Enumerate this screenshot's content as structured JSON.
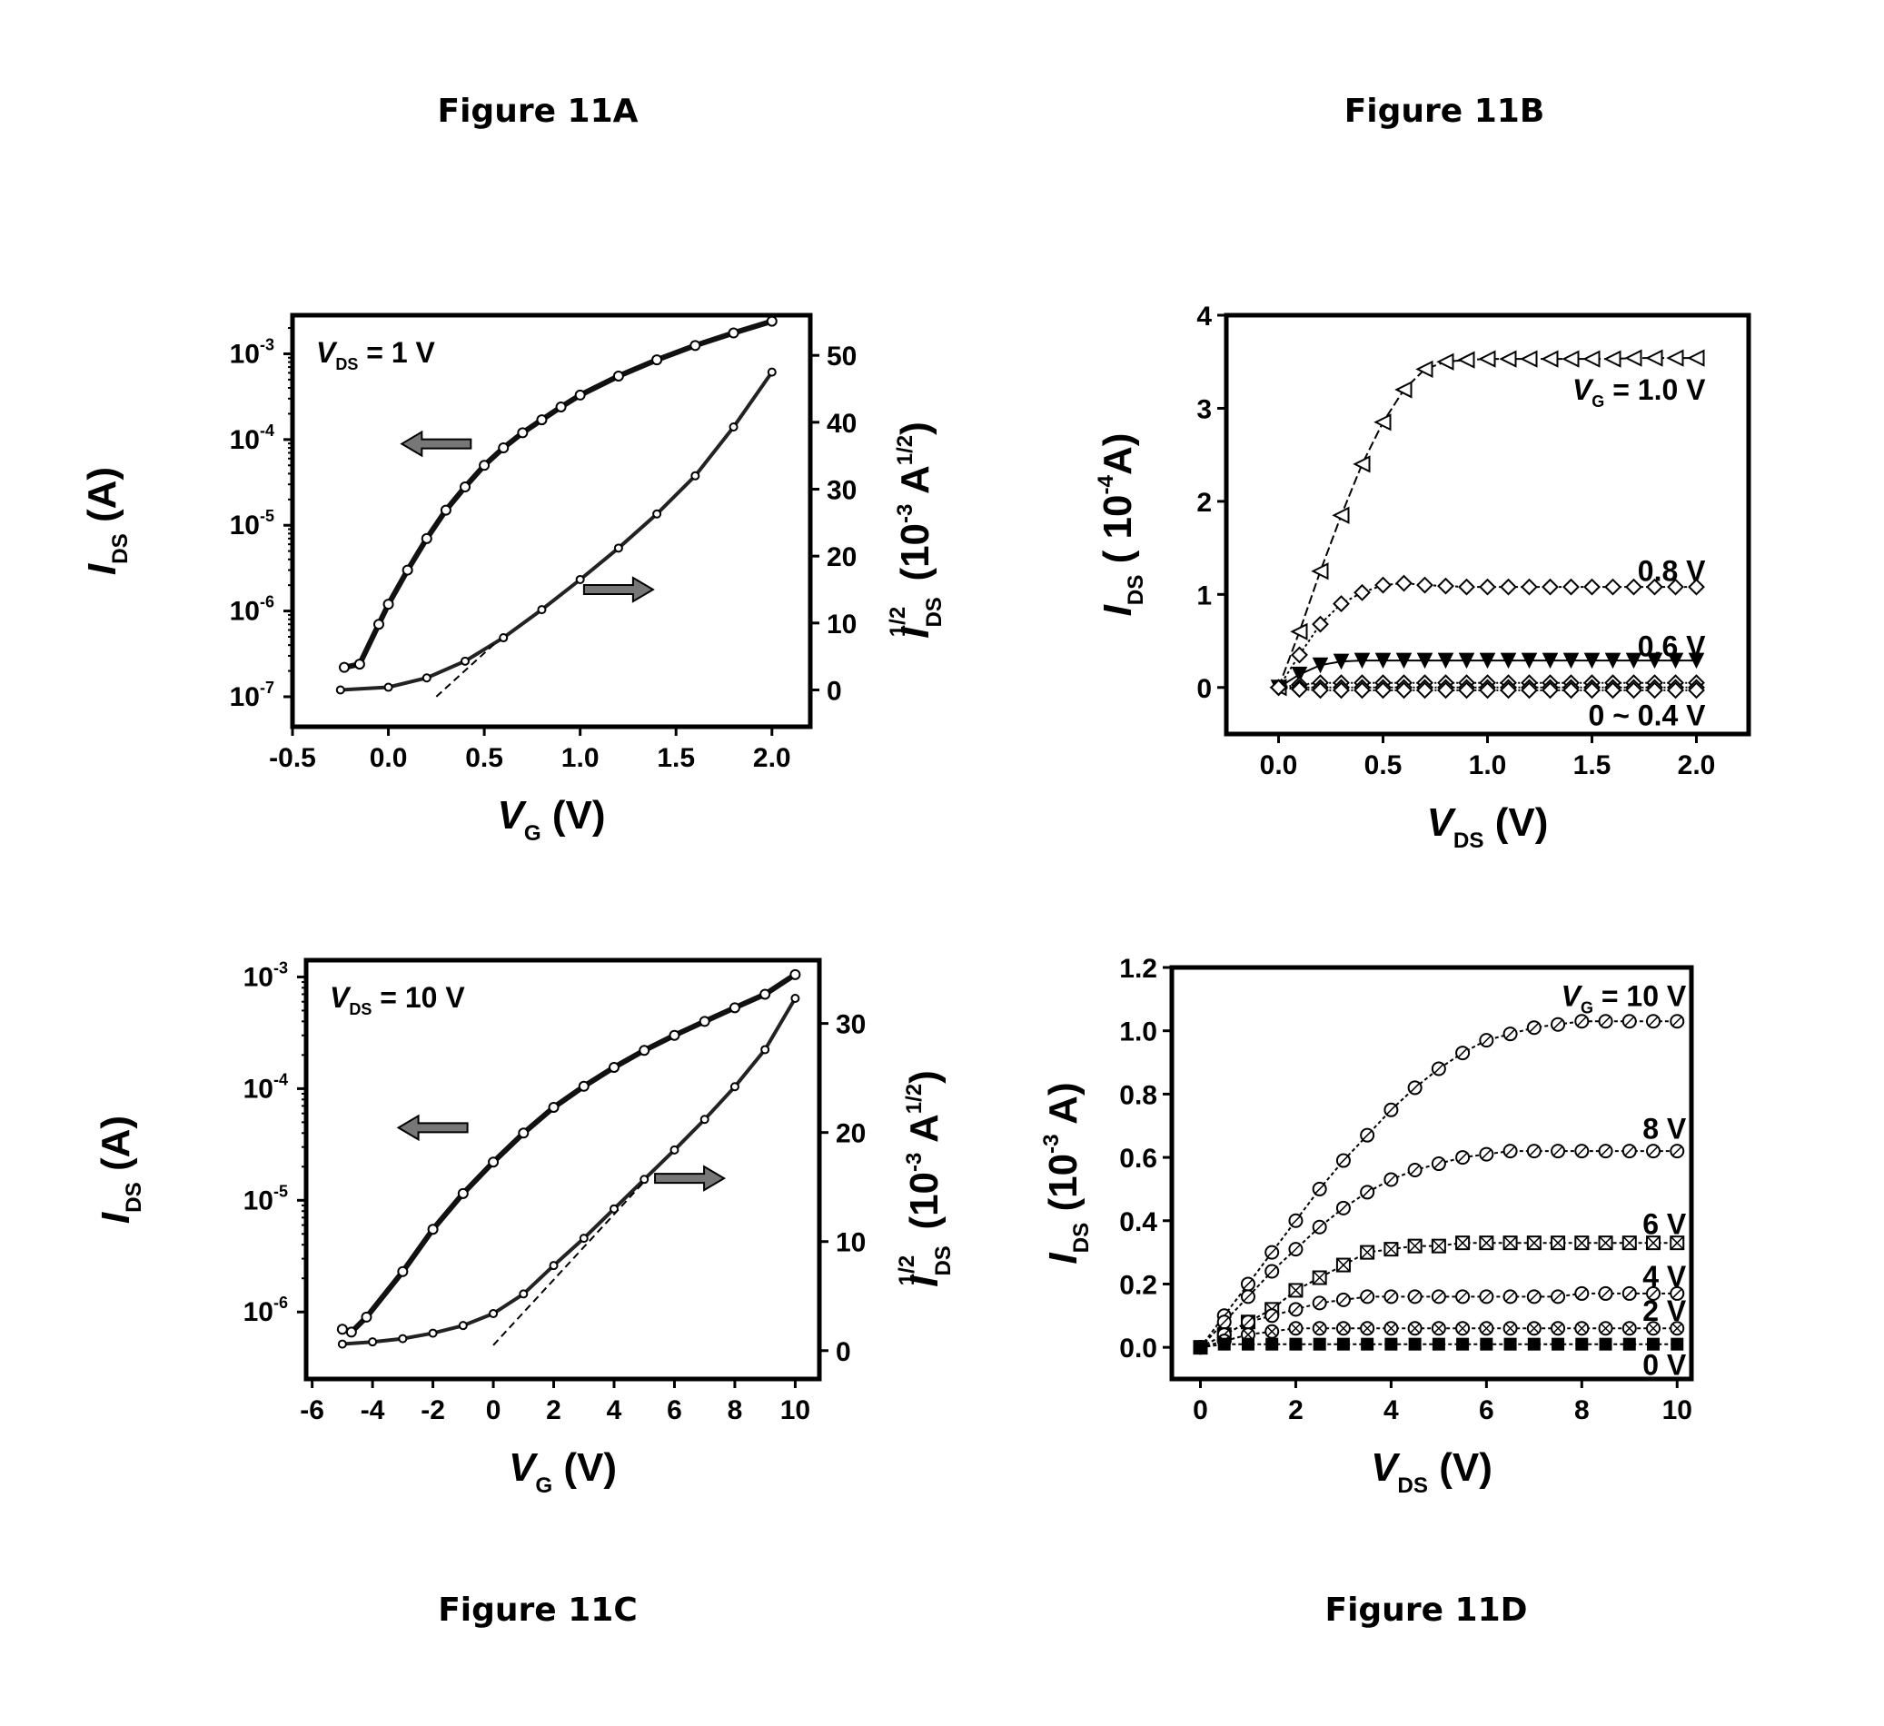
{
  "figures": {
    "a": {
      "title": "Figure 11A"
    },
    "b": {
      "title": "Figure 11B"
    },
    "c": {
      "title": "Figure 11C"
    },
    "d": {
      "title": "Figure 11D"
    }
  },
  "chart_data": [
    {
      "id": "a",
      "type": "line",
      "title": "Figure 11A",
      "annotation": {
        "var": "V",
        "sub": "DS",
        "text": " = 1 V"
      },
      "xlabel": {
        "var": "V",
        "sub": "G",
        "text": " (V)"
      },
      "ylabel": {
        "var": "I",
        "sub": "DS",
        "text": " (A)"
      },
      "y2label": {
        "var": "I",
        "sub": "DS",
        "sup": "1/2",
        "text_a": " (10",
        "text_sup": "-3",
        "text_b": " A",
        "text_sup2": "1/2",
        "text_c": ")"
      },
      "xlim": [
        -0.5,
        2.2
      ],
      "xticks": [
        -0.5,
        0.0,
        0.5,
        1.0,
        1.5,
        2.0
      ],
      "xtick_labels": [
        "-0.5",
        "0.0",
        "0.5",
        "1.0",
        "1.5",
        "2.0"
      ],
      "ylim_log": [
        -7.35,
        -2.55
      ],
      "yticks_log": [
        -7,
        -6,
        -5,
        -4,
        -3
      ],
      "ytick_labels_log": [
        {
          "base": "10",
          "exp": "-7"
        },
        {
          "base": "10",
          "exp": "-6"
        },
        {
          "base": "10",
          "exp": "-5"
        },
        {
          "base": "10",
          "exp": "-4"
        },
        {
          "base": "10",
          "exp": "-3"
        }
      ],
      "y2lim": [
        -5.5,
        56
      ],
      "y2ticks": [
        0,
        10,
        20,
        30,
        40,
        50
      ],
      "y2tick_labels": [
        "0",
        "10",
        "20",
        "30",
        "40",
        "50"
      ],
      "log_series": {
        "axis": "left",
        "x": [
          -0.23,
          -0.15,
          -0.05,
          0.0,
          0.1,
          0.2,
          0.3,
          0.4,
          0.5,
          0.6,
          0.7,
          0.8,
          0.9,
          1.0,
          1.2,
          1.4,
          1.6,
          1.8,
          2.0
        ],
        "y": [
          2.2e-07,
          2.4e-07,
          7e-07,
          1.2e-06,
          3e-06,
          7e-06,
          1.5e-05,
          2.8e-05,
          5e-05,
          8e-05,
          0.00012,
          0.00017,
          0.00024,
          0.00033,
          0.00055,
          0.00085,
          0.00125,
          0.00175,
          0.0024
        ]
      },
      "sqrt_series": {
        "axis": "right",
        "x": [
          -0.25,
          0.0,
          0.2,
          0.4,
          0.6,
          0.8,
          1.0,
          1.2,
          1.4,
          1.6,
          1.8,
          2.0
        ],
        "y": [
          0.0,
          0.4,
          1.8,
          4.3,
          7.8,
          12.0,
          16.5,
          21.2,
          26.3,
          32.0,
          39.3,
          47.5
        ]
      },
      "fit_line": {
        "axis": "right",
        "x": [
          0.25,
          0.55
        ],
        "y": [
          -1.0,
          6.8
        ]
      },
      "arrows": [
        {
          "dir": "left",
          "x": 0.25,
          "ylog": -4.05
        },
        {
          "dir": "right",
          "x": 1.2,
          "y2": 15
        }
      ]
    },
    {
      "id": "b",
      "type": "line",
      "title": "Figure 11B",
      "xlabel": {
        "var": "V",
        "sub": "DS",
        "text": " (V)"
      },
      "ylabel": {
        "var": "I",
        "sub": "DS",
        "text_a": " ( 10",
        "text_sup": "-4",
        "text_b": "A)"
      },
      "xlim": [
        -0.25,
        2.25
      ],
      "xticks": [
        0.0,
        0.5,
        1.0,
        1.5,
        2.0
      ],
      "xtick_labels": [
        "0.0",
        "0.5",
        "1.0",
        "1.5",
        "2.0"
      ],
      "ylim": [
        -0.5,
        4.0
      ],
      "yticks": [
        0,
        1,
        2,
        3,
        4
      ],
      "ytick_labels": [
        "0",
        "1",
        "2",
        "3",
        "4"
      ],
      "series": [
        {
          "label": "V_G = 1.0 V",
          "marker": "tri-left",
          "dash": "10,4",
          "x": [
            0,
            0.1,
            0.2,
            0.3,
            0.4,
            0.5,
            0.6,
            0.7,
            0.8,
            0.9,
            1.0,
            1.1,
            1.2,
            1.3,
            1.4,
            1.5,
            1.6,
            1.7,
            1.8,
            1.9,
            2.0
          ],
          "y": [
            0,
            0.6,
            1.25,
            1.85,
            2.4,
            2.85,
            3.2,
            3.42,
            3.5,
            3.52,
            3.53,
            3.53,
            3.53,
            3.53,
            3.53,
            3.53,
            3.53,
            3.54,
            3.54,
            3.54,
            3.54
          ]
        },
        {
          "label": "0.8 V",
          "marker": "diamond",
          "dash": "3,3",
          "x": [
            0,
            0.1,
            0.2,
            0.3,
            0.4,
            0.5,
            0.6,
            0.7,
            0.8,
            0.9,
            1.0,
            1.1,
            1.2,
            1.3,
            1.4,
            1.5,
            1.6,
            1.7,
            1.8,
            1.9,
            2.0
          ],
          "y": [
            0,
            0.35,
            0.68,
            0.9,
            1.02,
            1.1,
            1.12,
            1.1,
            1.09,
            1.08,
            1.08,
            1.08,
            1.08,
            1.08,
            1.08,
            1.08,
            1.08,
            1.08,
            1.08,
            1.08,
            1.08
          ]
        },
        {
          "label": "0.6 V",
          "marker": "tri-down",
          "dash": "",
          "x": [
            0,
            0.1,
            0.2,
            0.3,
            0.4,
            0.5,
            0.6,
            0.7,
            0.8,
            0.9,
            1.0,
            1.1,
            1.2,
            1.3,
            1.4,
            1.5,
            1.6,
            1.7,
            1.8,
            1.9,
            2.0
          ],
          "y": [
            0,
            0.14,
            0.24,
            0.28,
            0.29,
            0.29,
            0.29,
            0.29,
            0.29,
            0.29,
            0.29,
            0.29,
            0.29,
            0.29,
            0.29,
            0.29,
            0.29,
            0.29,
            0.29,
            0.29,
            0.29
          ]
        },
        {
          "label": "0 ~ 0.4 V",
          "marker": "diamond",
          "dash": "2,2",
          "x": [
            0,
            0.1,
            0.2,
            0.3,
            0.4,
            0.5,
            0.6,
            0.7,
            0.8,
            0.9,
            1.0,
            1.1,
            1.2,
            1.3,
            1.4,
            1.5,
            1.6,
            1.7,
            1.8,
            1.9,
            2.0
          ],
          "y": [
            0,
            0.03,
            0.05,
            0.05,
            0.05,
            0.05,
            0.05,
            0.05,
            0.05,
            0.05,
            0.05,
            0.05,
            0.05,
            0.05,
            0.05,
            0.05,
            0.05,
            0.05,
            0.05,
            0.05,
            0.05
          ]
        },
        {
          "label": "",
          "marker": "diamond",
          "dash": "2,2",
          "x": [
            0,
            0.1,
            0.2,
            0.3,
            0.4,
            0.5,
            0.6,
            0.7,
            0.8,
            0.9,
            1.0,
            1.1,
            1.2,
            1.3,
            1.4,
            1.5,
            1.6,
            1.7,
            1.8,
            1.9,
            2.0
          ],
          "y": [
            0,
            0.0,
            0.0,
            0.0,
            0.0,
            0.0,
            0.0,
            0.0,
            0.0,
            0.0,
            0.0,
            0.0,
            0.0,
            0.0,
            0.0,
            0.0,
            0.0,
            0.0,
            0.0,
            0.0,
            0.0
          ]
        },
        {
          "label": "",
          "marker": "diamond",
          "dash": "2,2",
          "x": [
            0,
            0.1,
            0.2,
            0.3,
            0.4,
            0.5,
            0.6,
            0.7,
            0.8,
            0.9,
            1.0,
            1.1,
            1.2,
            1.3,
            1.4,
            1.5,
            1.6,
            1.7,
            1.8,
            1.9,
            2.0
          ],
          "y": [
            0,
            -0.02,
            -0.03,
            -0.03,
            -0.03,
            -0.03,
            -0.03,
            -0.03,
            -0.03,
            -0.03,
            -0.03,
            -0.03,
            -0.03,
            -0.03,
            -0.03,
            -0.03,
            -0.03,
            -0.03,
            -0.03,
            -0.03,
            -0.03
          ]
        }
      ],
      "labels": [
        {
          "var": "V",
          "sub": "G",
          "text": " = 1.0 V",
          "x": 2.0,
          "y": 3.2
        },
        {
          "text": "0.8 V",
          "x": 2.0,
          "y": 1.25
        },
        {
          "text": "0.6 V",
          "x": 2.0,
          "y": 0.44
        },
        {
          "text": "0 ~ 0.4 V",
          "x": 2.0,
          "y": -0.3
        }
      ]
    },
    {
      "id": "c",
      "type": "line",
      "title": "Figure 11C",
      "annotation": {
        "var": "V",
        "sub": "DS",
        "text": " = 10 V"
      },
      "xlabel": {
        "var": "V",
        "sub": "G",
        "text": " (V)"
      },
      "ylabel": {
        "var": "I",
        "sub": "DS",
        "text": " (A)"
      },
      "y2label": {
        "var": "I",
        "sub": "DS",
        "sup": "1/2",
        "text_a": " (10",
        "text_sup": "-3",
        "text_b": " A",
        "text_sup2": "1/2",
        "text_c": ")"
      },
      "xlim": [
        -6.2,
        10.8
      ],
      "xticks": [
        -6,
        -4,
        -2,
        0,
        2,
        4,
        6,
        8,
        10
      ],
      "xtick_labels": [
        "-6",
        "-4",
        "-2",
        "0",
        "2",
        "4",
        "6",
        "8",
        "10"
      ],
      "ylim_log": [
        -6.6,
        -2.85
      ],
      "yticks_log": [
        -6,
        -5,
        -4,
        -3
      ],
      "ytick_labels_log": [
        {
          "base": "10",
          "exp": "-6"
        },
        {
          "base": "10",
          "exp": "-5"
        },
        {
          "base": "10",
          "exp": "-4"
        },
        {
          "base": "10",
          "exp": "-3"
        }
      ],
      "y2lim": [
        -2.6,
        35.8
      ],
      "y2ticks": [
        0,
        10,
        20,
        30
      ],
      "y2tick_labels": [
        "0",
        "10",
        "20",
        "30"
      ],
      "log_series": {
        "axis": "left",
        "x": [
          -5,
          -4.7,
          -4.2,
          -3,
          -2,
          -1,
          0,
          1,
          2,
          3,
          4,
          5,
          6,
          7,
          8,
          9,
          10
        ],
        "y": [
          7e-07,
          6.6e-07,
          9e-07,
          2.3e-06,
          5.5e-06,
          1.15e-05,
          2.2e-05,
          4e-05,
          6.8e-05,
          0.000105,
          0.000155,
          0.00022,
          0.0003,
          0.0004,
          0.00053,
          0.0007,
          0.00105
        ]
      },
      "sqrt_series": {
        "axis": "right",
        "x": [
          -5,
          -4,
          -3,
          -2,
          -1,
          0,
          1,
          2,
          3,
          4,
          5,
          6,
          7,
          8,
          9,
          10
        ],
        "y": [
          0.6,
          0.8,
          1.1,
          1.6,
          2.3,
          3.4,
          5.2,
          7.8,
          10.3,
          13.0,
          15.7,
          18.4,
          21.2,
          24.2,
          27.6,
          32.3
        ]
      },
      "fit_line": {
        "axis": "right",
        "x": [
          0.0,
          5.0
        ],
        "y": [
          0.5,
          15.5
        ]
      },
      "arrows": [
        {
          "dir": "left",
          "x": -2,
          "ylog": -4.35
        },
        {
          "dir": "right",
          "x": 6.5,
          "y2": 15.8
        }
      ]
    },
    {
      "id": "d",
      "type": "line",
      "title": "Figure 11D",
      "xlabel": {
        "var": "V",
        "sub": "DS",
        "text": " (V)"
      },
      "ylabel": {
        "var": "I",
        "sub": "DS",
        "text_a": " (10",
        "text_sup": "-3",
        "text_b": " A)"
      },
      "xlim": [
        -0.6,
        10.3
      ],
      "xticks": [
        0,
        2,
        4,
        6,
        8,
        10
      ],
      "xtick_labels": [
        "0",
        "2",
        "4",
        "6",
        "8",
        "10"
      ],
      "ylim": [
        -0.1,
        1.2
      ],
      "yticks": [
        0.0,
        0.2,
        0.4,
        0.6,
        0.8,
        1.0,
        1.2
      ],
      "ytick_labels": [
        "0.0",
        "0.2",
        "0.4",
        "0.6",
        "0.8",
        "1.0",
        "1.2"
      ],
      "series": [
        {
          "label": "V_G = 10 V",
          "marker": "circle-slash",
          "x": [
            0,
            0.5,
            1,
            1.5,
            2,
            2.5,
            3,
            3.5,
            4,
            4.5,
            5,
            5.5,
            6,
            6.5,
            7,
            7.5,
            8,
            8.5,
            9,
            9.5,
            10
          ],
          "y": [
            0,
            0.1,
            0.2,
            0.3,
            0.4,
            0.5,
            0.59,
            0.67,
            0.75,
            0.82,
            0.88,
            0.93,
            0.97,
            0.99,
            1.01,
            1.02,
            1.03,
            1.03,
            1.03,
            1.03,
            1.03
          ]
        },
        {
          "label": "8 V",
          "marker": "circle-slash",
          "x": [
            0,
            0.5,
            1,
            1.5,
            2,
            2.5,
            3,
            3.5,
            4,
            4.5,
            5,
            5.5,
            6,
            6.5,
            7,
            7.5,
            8,
            8.5,
            9,
            9.5,
            10
          ],
          "y": [
            0,
            0.08,
            0.16,
            0.24,
            0.31,
            0.38,
            0.44,
            0.49,
            0.53,
            0.56,
            0.58,
            0.6,
            0.61,
            0.62,
            0.62,
            0.62,
            0.62,
            0.62,
            0.62,
            0.62,
            0.62
          ]
        },
        {
          "label": "6 V",
          "marker": "square-x",
          "x": [
            0,
            0.5,
            1,
            1.5,
            2,
            2.5,
            3,
            3.5,
            4,
            4.5,
            5,
            5.5,
            6,
            6.5,
            7,
            7.5,
            8,
            8.5,
            9,
            9.5,
            10
          ],
          "y": [
            0,
            0.04,
            0.08,
            0.12,
            0.18,
            0.22,
            0.26,
            0.3,
            0.31,
            0.32,
            0.32,
            0.33,
            0.33,
            0.33,
            0.33,
            0.33,
            0.33,
            0.33,
            0.33,
            0.33,
            0.33
          ]
        },
        {
          "label": "4 V",
          "marker": "circle-slash",
          "x": [
            0,
            0.5,
            1,
            1.5,
            2,
            2.5,
            3,
            3.5,
            4,
            4.5,
            5,
            5.5,
            6,
            6.5,
            7,
            7.5,
            8,
            8.5,
            9,
            9.5,
            10
          ],
          "y": [
            0,
            0.04,
            0.08,
            0.1,
            0.12,
            0.14,
            0.15,
            0.16,
            0.16,
            0.16,
            0.16,
            0.16,
            0.16,
            0.16,
            0.16,
            0.16,
            0.17,
            0.17,
            0.17,
            0.17,
            0.17
          ]
        },
        {
          "label": "2 V",
          "marker": "circle-x",
          "x": [
            0,
            0.5,
            1,
            1.5,
            2,
            2.5,
            3,
            3.5,
            4,
            4.5,
            5,
            5.5,
            6,
            6.5,
            7,
            7.5,
            8,
            8.5,
            9,
            9.5,
            10
          ],
          "y": [
            0,
            0.02,
            0.04,
            0.05,
            0.06,
            0.06,
            0.06,
            0.06,
            0.06,
            0.06,
            0.06,
            0.06,
            0.06,
            0.06,
            0.06,
            0.06,
            0.06,
            0.06,
            0.06,
            0.06,
            0.06
          ]
        },
        {
          "label": "0 V",
          "marker": "square-fill",
          "x": [
            0,
            0.5,
            1,
            1.5,
            2,
            2.5,
            3,
            3.5,
            4,
            4.5,
            5,
            5.5,
            6,
            6.5,
            7,
            7.5,
            8,
            8.5,
            9,
            9.5,
            10
          ],
          "y": [
            0,
            0.01,
            0.01,
            0.01,
            0.01,
            0.01,
            0.01,
            0.01,
            0.01,
            0.01,
            0.01,
            0.01,
            0.01,
            0.01,
            0.01,
            0.01,
            0.01,
            0.01,
            0.01,
            0.01,
            0.01
          ]
        }
      ],
      "labels": [
        {
          "var": "V",
          "sub": "G",
          "text": " = 10 V",
          "x": 10.0,
          "y": 1.11
        },
        {
          "text": "8 V",
          "x": 10.0,
          "y": 0.69
        },
        {
          "text": "6 V",
          "x": 10.0,
          "y": 0.39
        },
        {
          "text": "4 V",
          "x": 10.0,
          "y": 0.225
        },
        {
          "text": "2 V",
          "x": 10.0,
          "y": 0.115
        },
        {
          "text": "0 V",
          "x": 10.0,
          "y": -0.055
        }
      ]
    }
  ]
}
